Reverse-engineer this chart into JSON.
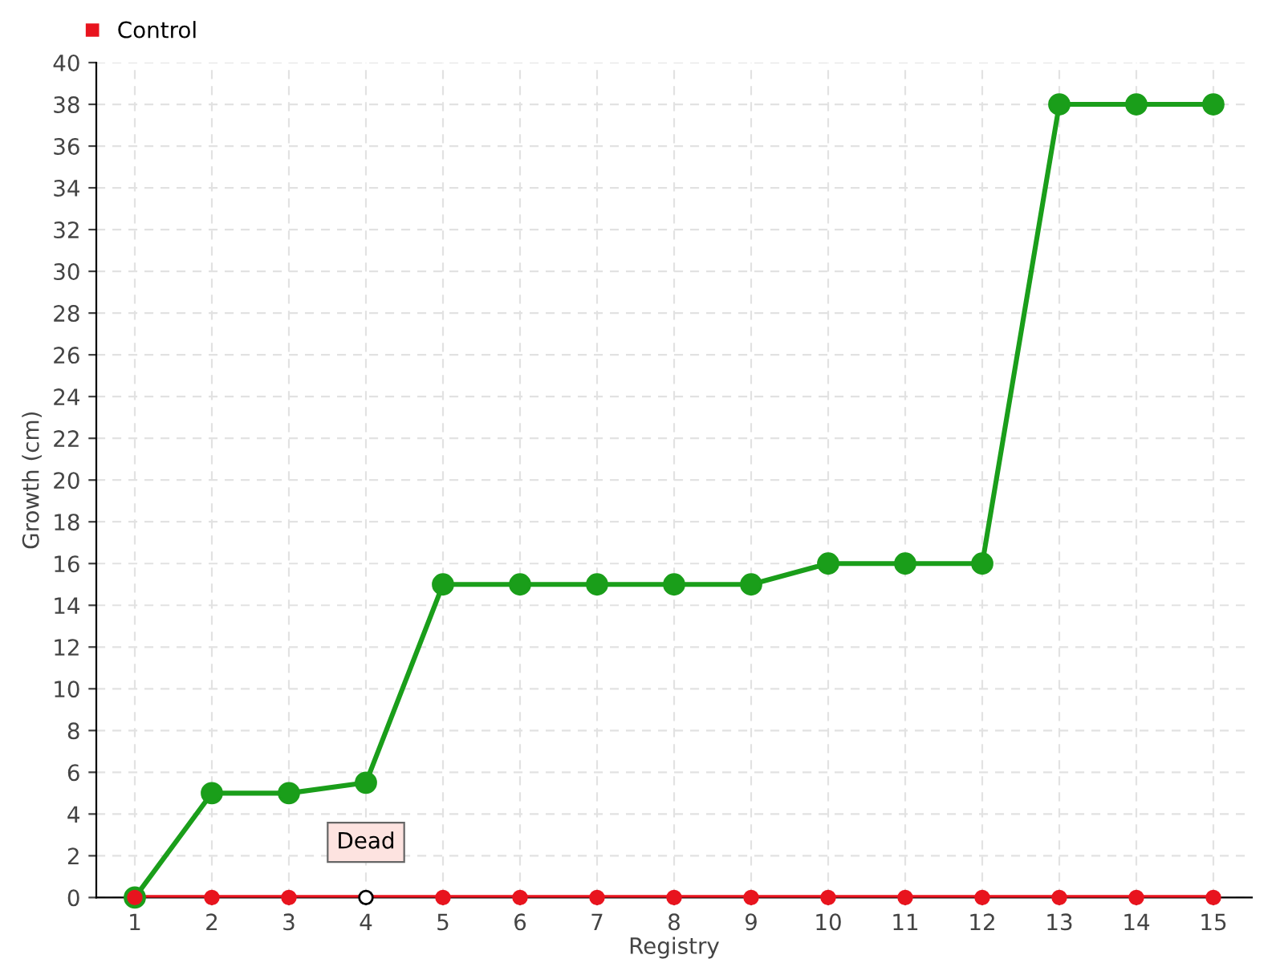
{
  "chart_data": {
    "type": "line",
    "xlabel": "Registry",
    "ylabel": "Growth (cm)",
    "categories": [
      "1",
      "2",
      "3",
      "4",
      "5",
      "6",
      "7",
      "8",
      "9",
      "10",
      "11",
      "12",
      "13",
      "14",
      "15"
    ],
    "series": [
      {
        "color": "#1a9e1a",
        "values": [
          0,
          5,
          5,
          5.5,
          15,
          15,
          15,
          15,
          15,
          16,
          16,
          16,
          38,
          38,
          38
        ]
      },
      {
        "name": "Control",
        "color": "#e8141e",
        "values": [
          0,
          0,
          0,
          0,
          0,
          0,
          0,
          0,
          0,
          0,
          0,
          0,
          0,
          0,
          0
        ],
        "colors": [
          "#e8141e",
          "#e8141e",
          "#e8141e",
          "#ffffff",
          "#e8141e",
          "#e8141e",
          "#e8141e",
          "#e8141e",
          "#e8141e",
          "#e8141e",
          "#e8141e",
          "#e8141e",
          "#e8141e",
          "#e8141e",
          "#e8141e"
        ]
      }
    ],
    "annotations": [
      {
        "text": "Dead",
        "x": "4",
        "y": 0
      }
    ],
    "ylim": [
      0,
      40
    ],
    "yticks": [
      0,
      2,
      4,
      6,
      8,
      10,
      12,
      14,
      16,
      18,
      20,
      22,
      24,
      26,
      28,
      30,
      32,
      34,
      36,
      38,
      40
    ],
    "grid": true,
    "legend": "top left",
    "marker": "circle",
    "line_style": "solid"
  }
}
